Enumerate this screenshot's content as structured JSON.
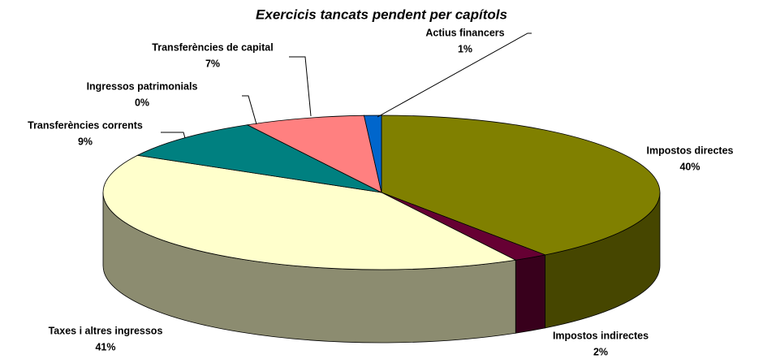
{
  "chart_data": {
    "type": "pie3d",
    "title": "Exercicis tancats pendent per capítols",
    "categories": [
      "Impostos directes",
      "Impostos indirectes",
      "Taxes i altres ingressos",
      "Transferències corrents",
      "Ingressos patrimonials",
      "Transferències de capital",
      "Actius financers"
    ],
    "values": [
      40,
      2,
      41,
      9,
      0,
      7,
      1
    ],
    "value_labels": [
      "40%",
      "2%",
      "41%",
      "9%",
      "0%",
      "7%",
      "1%"
    ],
    "colors": [
      "#808000",
      "#660033",
      "#FFFFCC",
      "#008080",
      "#A0A0A0",
      "#FF8080",
      "#0066CC"
    ]
  }
}
